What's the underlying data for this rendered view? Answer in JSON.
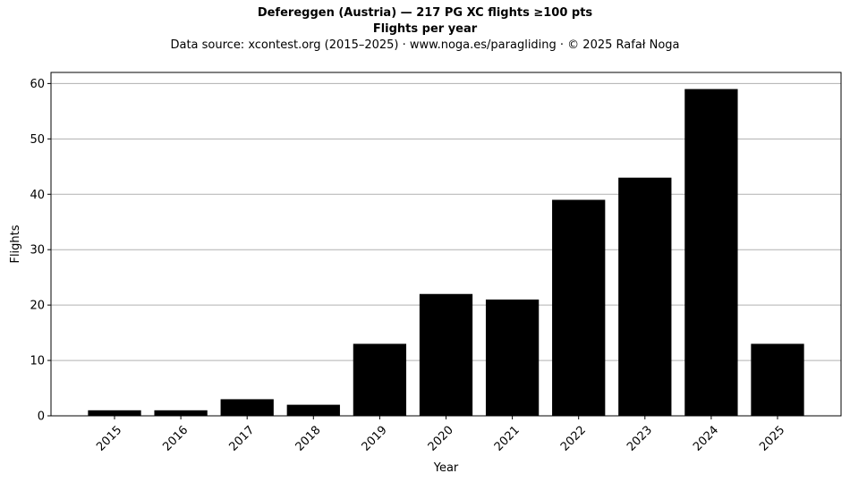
{
  "chart_data": {
    "type": "bar",
    "title": "Defereggen (Austria)  —  217 PG XC flights ≥100 pts",
    "subtitle": "Flights per year",
    "source": "Data source: xcontest.org (2015–2025)  ·  www.noga.es/paragliding  ·  © 2025 Rafał Noga",
    "xlabel": "Year",
    "ylabel": "Flights",
    "categories": [
      "2015",
      "2016",
      "2017",
      "2018",
      "2019",
      "2020",
      "2021",
      "2022",
      "2023",
      "2024",
      "2025"
    ],
    "values": [
      1,
      1,
      3,
      2,
      13,
      22,
      21,
      39,
      43,
      59,
      13
    ],
    "ylim": [
      0,
      62
    ],
    "yticks": [
      0,
      10,
      20,
      30,
      40,
      50,
      60
    ],
    "grid": "y",
    "bar_color": "#000000",
    "grid_color": "#b0b0b0"
  }
}
